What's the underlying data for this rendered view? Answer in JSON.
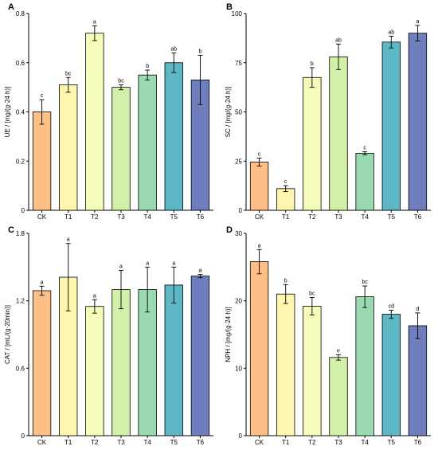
{
  "colors": [
    "#FDBF85",
    "#FEF5AE",
    "#F5FBB8",
    "#D3F0A8",
    "#9BD9B0",
    "#5DB7C4",
    "#6F7FBE"
  ],
  "chart_data": [
    {
      "panel": "A",
      "type": "bar",
      "categories": [
        "CK",
        "T1",
        "T2",
        "T3",
        "T4",
        "T5",
        "T6"
      ],
      "values": [
        0.4,
        0.51,
        0.72,
        0.5,
        0.55,
        0.6,
        0.53
      ],
      "errors": [
        0.05,
        0.03,
        0.03,
        0.01,
        0.02,
        0.04,
        0.1
      ],
      "letters": [
        "c",
        "bc",
        "a",
        "bc",
        "b",
        "ab",
        "b"
      ],
      "ylabel": "UE / [mg/(g·24 h)]",
      "ylim": [
        0,
        0.8
      ],
      "yticks": [
        "0",
        "0.2",
        "0.4",
        "0.6",
        "0.8"
      ],
      "ytick_values": [
        0,
        0.2,
        0.4,
        0.6,
        0.8
      ]
    },
    {
      "panel": "B",
      "type": "bar",
      "categories": [
        "CK",
        "T1",
        "T2",
        "T3",
        "T4",
        "T5",
        "T6"
      ],
      "values": [
        24.5,
        11,
        67.5,
        78,
        29,
        85.5,
        90
      ],
      "errors": [
        2,
        1.5,
        5,
        6.5,
        0.8,
        3,
        4
      ],
      "letters": [
        "c",
        "c",
        "b",
        "ab",
        "c",
        "ab",
        "a"
      ],
      "ylabel": "SC / [mg/(g·24 h)]",
      "ylim": [
        0,
        100
      ],
      "yticks": [
        "0",
        "25",
        "50",
        "75",
        "100"
      ],
      "ytick_values": [
        0,
        25,
        50,
        75,
        100
      ]
    },
    {
      "panel": "C",
      "type": "bar",
      "categories": [
        "CK",
        "T1",
        "T2",
        "T3",
        "T4",
        "T5",
        "T6"
      ],
      "values": [
        1.29,
        1.41,
        1.15,
        1.3,
        1.3,
        1.34,
        1.42
      ],
      "errors": [
        0.04,
        0.3,
        0.06,
        0.17,
        0.2,
        0.16,
        0.015
      ],
      "letters": [
        "a",
        "a",
        "a",
        "a",
        "a",
        "a",
        "a"
      ],
      "ylabel": "CAT / [mL/(g·20min)]",
      "ylim": [
        0,
        1.8
      ],
      "yticks": [
        "0",
        "0.6",
        "1.2",
        "1.8"
      ],
      "ytick_values": [
        0,
        0.6,
        1.2,
        1.8
      ]
    },
    {
      "panel": "D",
      "type": "bar",
      "categories": [
        "CK",
        "T1",
        "T2",
        "T3",
        "T4",
        "T5",
        "T6"
      ],
      "values": [
        25.8,
        21.0,
        19.2,
        11.6,
        20.6,
        18.0,
        16.3
      ],
      "errors": [
        1.8,
        1.4,
        1.3,
        0.4,
        1.6,
        0.6,
        1.9
      ],
      "letters": [
        "a",
        "b",
        "bc",
        "e",
        "bc",
        "cd",
        "d"
      ],
      "ylabel": "NPH / [mg/(g·24 h)]",
      "ylim": [
        0,
        30
      ],
      "yticks": [
        "0",
        "10",
        "20",
        "30"
      ],
      "ytick_values": [
        0,
        10,
        20,
        30
      ]
    }
  ]
}
